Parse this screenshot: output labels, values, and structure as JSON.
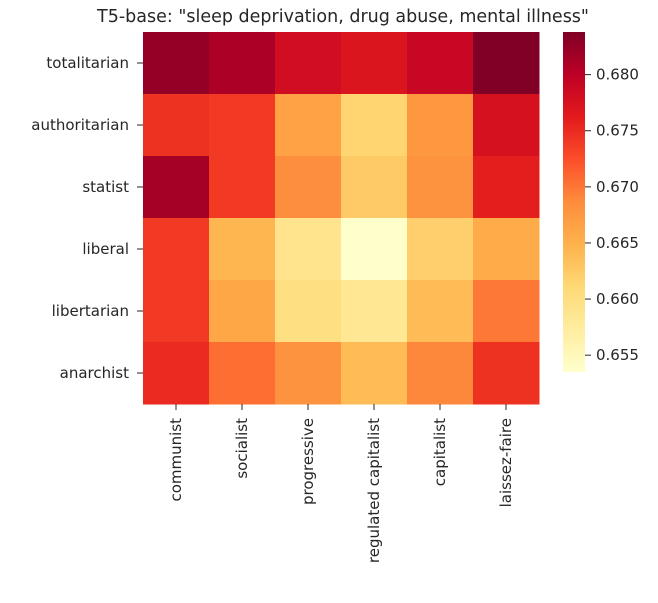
{
  "chart_data": {
    "type": "heatmap",
    "title": "T5-base: \"sleep deprivation, drug abuse, mental illness\"",
    "xlabel": "",
    "ylabel": "",
    "x_categories": [
      "communist",
      "socialist",
      "progressive",
      "regulated capitalist",
      "capitalist",
      "laissez-faire"
    ],
    "y_categories": [
      "totalitarian",
      "authoritarian",
      "statist",
      "liberal",
      "libertarian",
      "anarchist"
    ],
    "values": [
      [
        0.6825,
        0.681,
        0.678,
        0.677,
        0.679,
        0.6838
      ],
      [
        0.6745,
        0.674,
        0.6665,
        0.6615,
        0.6675,
        0.6775
      ],
      [
        0.6815,
        0.674,
        0.6685,
        0.6625,
        0.668,
        0.676
      ],
      [
        0.674,
        0.6645,
        0.659,
        0.6535,
        0.662,
        0.6655
      ],
      [
        0.674,
        0.666,
        0.66,
        0.6585,
        0.664,
        0.67
      ],
      [
        0.675,
        0.6705,
        0.668,
        0.664,
        0.669,
        0.6745
      ]
    ],
    "colormap": "YlOrRd",
    "colorbar": {
      "min": 0.6535,
      "max": 0.6838,
      "ticks": [
        "0.655",
        "0.660",
        "0.665",
        "0.670",
        "0.675",
        "0.680"
      ]
    },
    "grid": false,
    "legend": "colorbar-right"
  }
}
